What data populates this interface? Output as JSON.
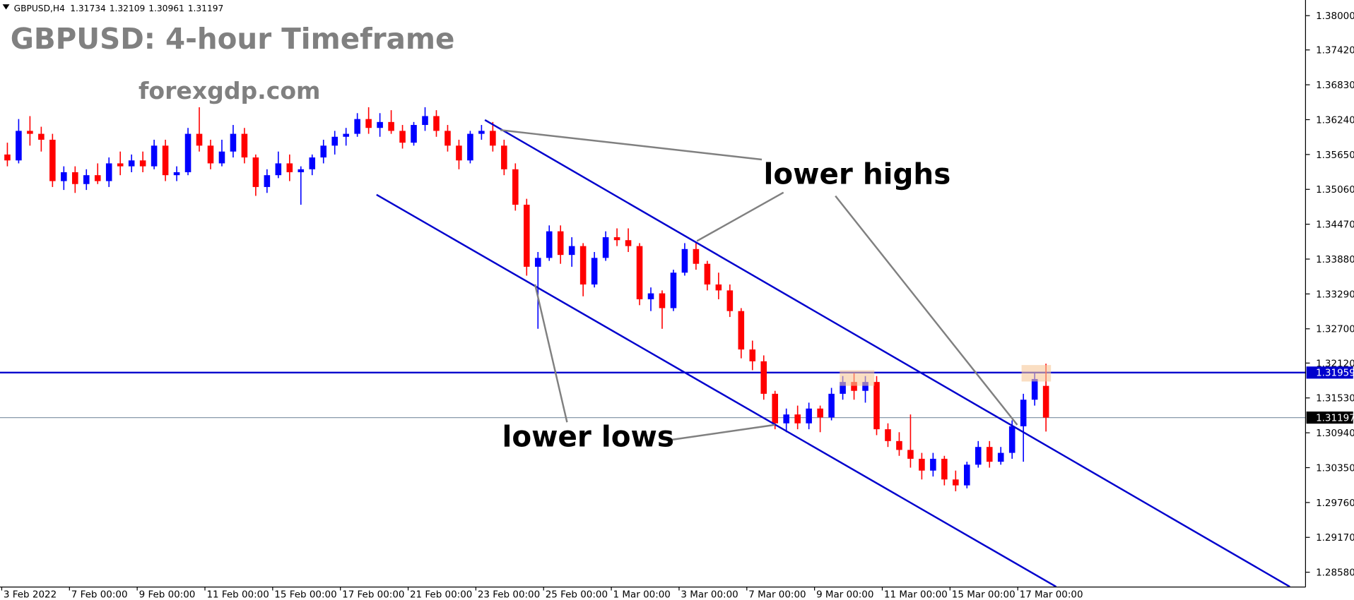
{
  "chart_data": {
    "type": "candlestick",
    "symbol": "GBPUSD,H4",
    "title": "GBPUSD: 4-hour Timeframe",
    "subtitle": "forexgdp.com",
    "annotations": [
      "lower highs",
      "lower lows"
    ],
    "up_color": "#0000ff",
    "down_color": "#ff0000",
    "ylim": [
      1.2833,
      1.38265
    ],
    "yticks": [
      {
        "value": 1.38,
        "label": "1.38000"
      },
      {
        "value": 1.3742,
        "label": "1.37420"
      },
      {
        "value": 1.3683,
        "label": "1.36830"
      },
      {
        "value": 1.3624,
        "label": "1.36240"
      },
      {
        "value": 1.3565,
        "label": "1.35650"
      },
      {
        "value": 1.3506,
        "label": "1.35060"
      },
      {
        "value": 1.3447,
        "label": "1.34470"
      },
      {
        "value": 1.3388,
        "label": "1.33880"
      },
      {
        "value": 1.3329,
        "label": "1.33290"
      },
      {
        "value": 1.327,
        "label": "1.32700"
      },
      {
        "value": 1.3212,
        "label": "1.32120"
      },
      {
        "value": 1.3153,
        "label": "1.31530"
      },
      {
        "value": 1.3094,
        "label": "1.30940"
      },
      {
        "value": 1.3035,
        "label": "1.30350"
      },
      {
        "value": 1.2976,
        "label": "1.29760"
      },
      {
        "value": 1.2917,
        "label": "1.29170"
      },
      {
        "value": 1.2858,
        "label": "1.28580"
      }
    ],
    "xticks": [
      {
        "value": 0,
        "label": "3 Feb 2022"
      },
      {
        "value": 6,
        "label": "7 Feb 00:00"
      },
      {
        "value": 12,
        "label": "9 Feb 00:00"
      },
      {
        "value": 18,
        "label": "11 Feb 00:00"
      },
      {
        "value": 24,
        "label": "15 Feb 00:00"
      },
      {
        "value": 30,
        "label": "17 Feb 00:00"
      },
      {
        "value": 36,
        "label": "21 Feb 00:00"
      },
      {
        "value": 42,
        "label": "23 Feb 00:00"
      },
      {
        "value": 48,
        "label": "25 Feb 00:00"
      },
      {
        "value": 54,
        "label": "1 Mar 00:00"
      },
      {
        "value": 60,
        "label": "3 Mar 00:00"
      },
      {
        "value": 66,
        "label": "7 Mar 00:00"
      },
      {
        "value": 72,
        "label": "9 Mar 00:00"
      },
      {
        "value": 78,
        "label": "11 Mar 00:00"
      },
      {
        "value": 84,
        "label": "15 Mar 00:00"
      },
      {
        "value": 90,
        "label": "17 Mar 00:00"
      }
    ],
    "price_lines": [
      {
        "value": 1.31959,
        "color": "#0000cd"
      },
      {
        "value": 1.31197,
        "color": "#000000"
      }
    ],
    "channel_color": "#0000cd",
    "channels": [
      {
        "x": [
          42.3,
          113.6
        ],
        "y": [
          1.36235,
          1.28335
        ]
      },
      {
        "x": [
          32.7,
          92.9
        ],
        "y": [
          1.3497,
          1.28335
        ]
      }
    ],
    "ohlc": [
      [
        1.3565,
        1.3585,
        1.3545,
        1.3555
      ],
      [
        1.3555,
        1.3625,
        1.355,
        1.3605
      ],
      [
        1.3605,
        1.363,
        1.358,
        1.36
      ],
      [
        1.36,
        1.3612,
        1.357,
        1.359
      ],
      [
        1.359,
        1.36,
        1.351,
        1.352
      ],
      [
        1.352,
        1.3545,
        1.3505,
        1.3535
      ],
      [
        1.3535,
        1.3545,
        1.35,
        1.3515
      ],
      [
        1.3515,
        1.354,
        1.3505,
        1.353
      ],
      [
        1.353,
        1.355,
        1.3515,
        1.352
      ],
      [
        1.352,
        1.356,
        1.351,
        1.355
      ],
      [
        1.355,
        1.357,
        1.353,
        1.3545
      ],
      [
        1.3545,
        1.3565,
        1.3535,
        1.3555
      ],
      [
        1.3555,
        1.357,
        1.3535,
        1.3545
      ],
      [
        1.3545,
        1.359,
        1.354,
        1.358
      ],
      [
        1.358,
        1.359,
        1.352,
        1.353
      ],
      [
        1.353,
        1.3545,
        1.352,
        1.3535
      ],
      [
        1.3535,
        1.361,
        1.353,
        1.36
      ],
      [
        1.36,
        1.3645,
        1.357,
        1.358
      ],
      [
        1.358,
        1.359,
        1.354,
        1.355
      ],
      [
        1.355,
        1.359,
        1.3545,
        1.357
      ],
      [
        1.357,
        1.3615,
        1.356,
        1.36
      ],
      [
        1.36,
        1.361,
        1.355,
        1.356
      ],
      [
        1.356,
        1.3565,
        1.3495,
        1.351
      ],
      [
        1.351,
        1.354,
        1.35,
        1.353
      ],
      [
        1.353,
        1.357,
        1.3525,
        1.355
      ],
      [
        1.355,
        1.3565,
        1.352,
        1.3535
      ],
      [
        1.3535,
        1.3545,
        1.348,
        1.354
      ],
      [
        1.354,
        1.3565,
        1.353,
        1.356
      ],
      [
        1.356,
        1.359,
        1.355,
        1.358
      ],
      [
        1.358,
        1.3605,
        1.3565,
        1.3595
      ],
      [
        1.3595,
        1.361,
        1.358,
        1.36
      ],
      [
        1.36,
        1.3635,
        1.3595,
        1.3625
      ],
      [
        1.3625,
        1.3645,
        1.36,
        1.361
      ],
      [
        1.361,
        1.3635,
        1.3595,
        1.362
      ],
      [
        1.362,
        1.364,
        1.36,
        1.3605
      ],
      [
        1.3605,
        1.3615,
        1.3575,
        1.3585
      ],
      [
        1.3585,
        1.362,
        1.358,
        1.3615
      ],
      [
        1.3615,
        1.3645,
        1.3605,
        1.363
      ],
      [
        1.363,
        1.364,
        1.3595,
        1.3605
      ],
      [
        1.3605,
        1.3615,
        1.357,
        1.358
      ],
      [
        1.358,
        1.359,
        1.354,
        1.3555
      ],
      [
        1.3555,
        1.3605,
        1.355,
        1.36
      ],
      [
        1.36,
        1.3615,
        1.359,
        1.3605
      ],
      [
        1.3605,
        1.362,
        1.357,
        1.358
      ],
      [
        1.358,
        1.359,
        1.353,
        1.354
      ],
      [
        1.354,
        1.355,
        1.347,
        1.348
      ],
      [
        1.348,
        1.349,
        1.336,
        1.3375
      ],
      [
        1.3375,
        1.34,
        1.327,
        1.339
      ],
      [
        1.339,
        1.3445,
        1.3385,
        1.3435
      ],
      [
        1.3435,
        1.3445,
        1.338,
        1.3395
      ],
      [
        1.3395,
        1.3425,
        1.3375,
        1.341
      ],
      [
        1.341,
        1.3415,
        1.3325,
        1.3345
      ],
      [
        1.3345,
        1.34,
        1.334,
        1.339
      ],
      [
        1.339,
        1.3435,
        1.3385,
        1.3425
      ],
      [
        1.3425,
        1.344,
        1.341,
        1.342
      ],
      [
        1.342,
        1.344,
        1.34,
        1.341
      ],
      [
        1.341,
        1.3415,
        1.331,
        1.332
      ],
      [
        1.332,
        1.334,
        1.33,
        1.333
      ],
      [
        1.333,
        1.3335,
        1.327,
        1.3305
      ],
      [
        1.3305,
        1.337,
        1.33,
        1.3365
      ],
      [
        1.3365,
        1.3415,
        1.336,
        1.3405
      ],
      [
        1.3405,
        1.3415,
        1.337,
        1.338
      ],
      [
        1.338,
        1.3385,
        1.3335,
        1.3345
      ],
      [
        1.3345,
        1.3365,
        1.332,
        1.3335
      ],
      [
        1.3335,
        1.3345,
        1.329,
        1.33
      ],
      [
        1.33,
        1.3305,
        1.322,
        1.3235
      ],
      [
        1.3235,
        1.325,
        1.32,
        1.3215
      ],
      [
        1.3215,
        1.3225,
        1.315,
        1.316
      ],
      [
        1.316,
        1.3165,
        1.31,
        1.311
      ],
      [
        1.311,
        1.3135,
        1.3095,
        1.3125
      ],
      [
        1.3125,
        1.314,
        1.31,
        1.311
      ],
      [
        1.311,
        1.3145,
        1.31,
        1.3135
      ],
      [
        1.3135,
        1.314,
        1.3095,
        1.312
      ],
      [
        1.312,
        1.317,
        1.3115,
        1.316
      ],
      [
        1.316,
        1.319,
        1.315,
        1.318
      ],
      [
        1.318,
        1.3195,
        1.315,
        1.3165
      ],
      [
        1.3165,
        1.319,
        1.3145,
        1.318
      ],
      [
        1.318,
        1.319,
        1.309,
        1.31
      ],
      [
        1.31,
        1.311,
        1.307,
        1.308
      ],
      [
        1.308,
        1.3095,
        1.3055,
        1.3065
      ],
      [
        1.3065,
        1.3125,
        1.3035,
        1.305
      ],
      [
        1.305,
        1.306,
        1.3015,
        1.303
      ],
      [
        1.303,
        1.306,
        1.302,
        1.305
      ],
      [
        1.305,
        1.3055,
        1.3005,
        1.3015
      ],
      [
        1.3015,
        1.303,
        1.2995,
        1.3005
      ],
      [
        1.3005,
        1.3045,
        1.3,
        1.304
      ],
      [
        1.304,
        1.308,
        1.3035,
        1.307
      ],
      [
        1.307,
        1.308,
        1.3035,
        1.3045
      ],
      [
        1.3045,
        1.307,
        1.304,
        1.306
      ],
      [
        1.306,
        1.3115,
        1.305,
        1.3105
      ],
      [
        1.3105,
        1.316,
        1.3045,
        1.315
      ],
      [
        1.315,
        1.3195,
        1.314,
        1.3185
      ],
      [
        1.31734,
        1.32109,
        1.30961,
        1.31197
      ]
    ]
  }
}
